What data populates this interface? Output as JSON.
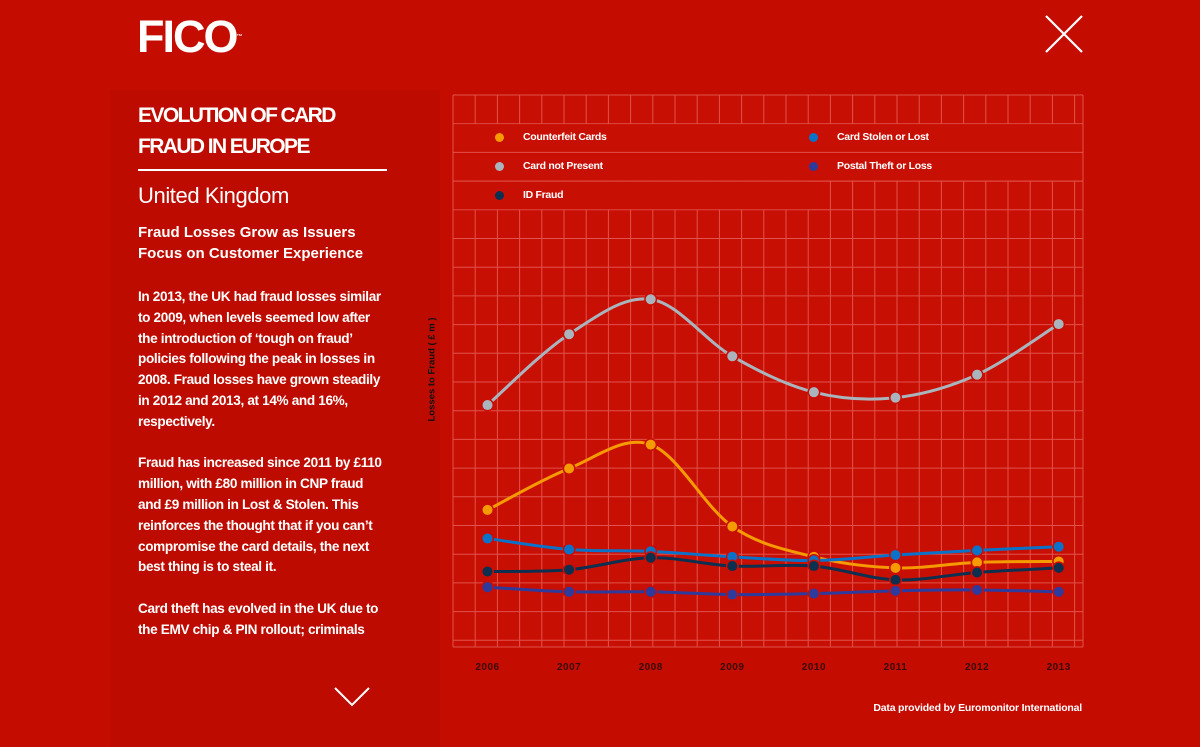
{
  "brand": {
    "logo": "FICO",
    "trademark": "™"
  },
  "sidebar": {
    "title_lines": [
      "EVOLUTION OF CARD",
      "FRAUD IN EUROPE"
    ],
    "country": "United Kingdom",
    "subhead_lines": [
      "Fraud Losses Grow as Issuers",
      "Focus on Customer Experience"
    ],
    "paragraphs": [
      [
        "In 2013, the UK had fraud losses similar",
        "to 2009, when levels seemed low after",
        "the introduction of ‘tough on fraud’",
        "policies following the peak in losses in",
        "2008. Fraud losses have grown steadily",
        "in 2012 and 2013, at 14% and 16%,",
        "respectively."
      ],
      [
        "Fraud has increased since 2011 by £110",
        "million, with £80 million in CNP fraud",
        "and £9 million in Lost & Stolen. This",
        "reinforces the thought that if you can’t",
        "compromise the card details, the next",
        "best thing is to steal it."
      ],
      [
        "Card theft has evolved in the UK due to",
        "the EMV chip & PIN rollout; criminals"
      ]
    ]
  },
  "icons": {
    "close": "close-x-icon",
    "scroll_down": "chevron-down-icon"
  },
  "colors": {
    "background": "#c40c00",
    "grid": "#e0524a"
  },
  "credit": "Data provided by Euromonitor International",
  "chart_data": {
    "type": "line",
    "ylabel": "Losses to Fraud ( £ m )",
    "xlabel": "",
    "categories": [
      "2006",
      "2007",
      "2008",
      "2009",
      "2010",
      "2011",
      "2012",
      "2013"
    ],
    "ylim": [
      -50,
      550
    ],
    "grid": true,
    "smooth": true,
    "legend_placement": "top",
    "series": [
      {
        "name": "Counterfeit Cards",
        "color": "#f59a00",
        "values": [
          99,
          144,
          170,
          81,
          48,
          36,
          42,
          43
        ]
      },
      {
        "name": "Card Stolen or Lost",
        "color": "#0a72c8",
        "values": [
          68,
          56,
          54,
          48,
          44,
          50,
          55,
          59
        ]
      },
      {
        "name": "Card not Present",
        "color": "#aab4bd",
        "values": [
          213,
          290,
          328,
          266,
          227,
          221,
          246,
          301
        ]
      },
      {
        "name": "Postal Theft or Loss",
        "color": "#2e3a9c",
        "values": [
          15,
          10,
          10,
          7,
          8,
          11,
          12,
          10
        ]
      },
      {
        "name": "ID Fraud",
        "color": "#0d3050",
        "values": [
          32,
          34,
          47,
          38,
          38,
          23,
          31,
          36
        ]
      }
    ]
  }
}
